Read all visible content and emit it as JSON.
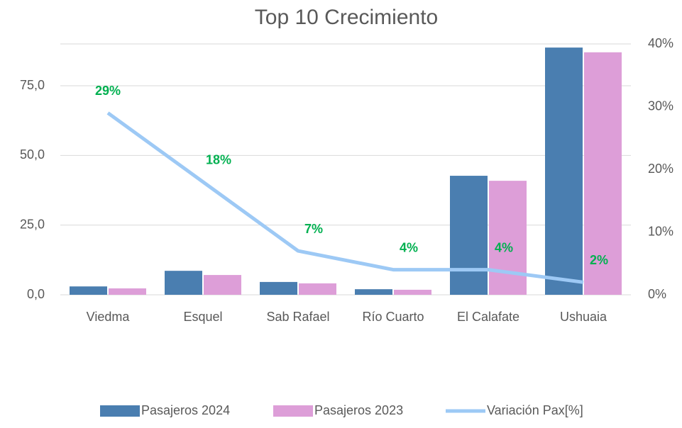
{
  "chart_data": {
    "type": "bar",
    "title": "Top 10 Crecimiento",
    "categories": [
      "Viedma",
      "Esquel",
      "Sab Rafael",
      "Río Cuarto",
      "El Calafate",
      "Ushuaia"
    ],
    "series": [
      {
        "name": "Pasajeros 2024",
        "color": "#4a7eb0",
        "values": [
          3.0,
          8.6,
          4.6,
          2.0,
          42.7,
          88.7
        ]
      },
      {
        "name": "Pasajeros 2023",
        "color": "#dd9ed8",
        "values": [
          2.3,
          7.1,
          4.1,
          1.8,
          40.9,
          87.0
        ]
      },
      {
        "name": "Variación Pax[%]",
        "color": "#9dc9f5",
        "type": "line",
        "axis": "y2",
        "values": [
          29,
          18,
          7,
          4,
          4,
          2
        ],
        "value_labels": [
          "29%",
          "18%",
          "7%",
          "4%",
          "4%",
          "2%"
        ],
        "label_color": "#00b050"
      }
    ],
    "ylim": [
      0,
      90
    ],
    "yticks": [
      {
        "value": 0,
        "label": "0,0"
      },
      {
        "value": 25,
        "label": "25,0"
      },
      {
        "value": 50,
        "label": "50,0"
      },
      {
        "value": 75,
        "label": "75,0"
      }
    ],
    "y2lim": [
      0,
      40
    ],
    "y2ticks": [
      {
        "value": 0,
        "label": "0%"
      },
      {
        "value": 10,
        "label": "10%"
      },
      {
        "value": 20,
        "label": "20%"
      },
      {
        "value": 30,
        "label": "30%"
      },
      {
        "value": 40,
        "label": "40%"
      }
    ],
    "grid": true,
    "legend": "bottom"
  }
}
